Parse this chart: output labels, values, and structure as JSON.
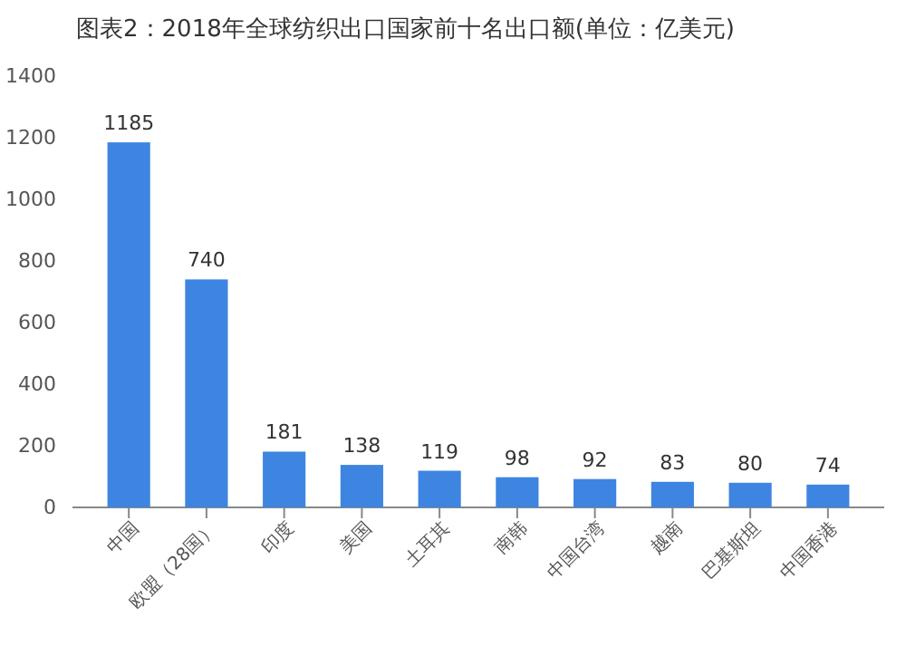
{
  "chart_data": {
    "type": "bar",
    "title": "图表2：2018年全球纺织出口国家前十名出口额(单位：亿美元)",
    "categories": [
      "中国",
      "欧盟（28国）",
      "印度",
      "美国",
      "土耳其",
      "南韩",
      "中国台湾",
      "越南",
      "巴基斯坦",
      "中国香港"
    ],
    "values": [
      1185,
      740,
      181,
      138,
      119,
      98,
      92,
      83,
      80,
      74
    ],
    "color": "#3d85e0",
    "ylim": [
      0,
      1400
    ],
    "yticks": [
      0,
      200,
      400,
      600,
      800,
      1000,
      1200,
      1400
    ],
    "grid": false,
    "data_labels": true
  }
}
